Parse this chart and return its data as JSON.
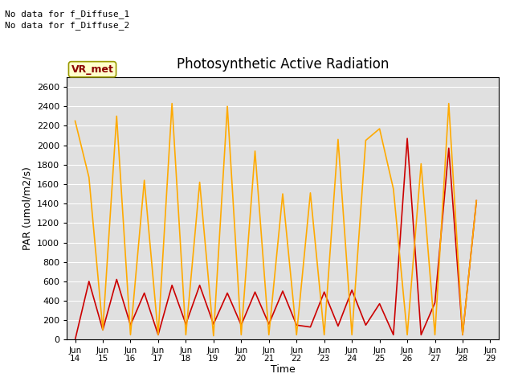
{
  "title": "Photosynthetic Active Radiation",
  "ylabel": "PAR (umol/m2/s)",
  "xlabel": "Time",
  "note_line1": "No data for f_Diffuse_1",
  "note_line2": "No data for f_Diffuse_2",
  "box_label": "VR_met",
  "ylim": [
    0,
    2700
  ],
  "yticks": [
    0,
    200,
    400,
    600,
    800,
    1000,
    1200,
    1400,
    1600,
    1800,
    2000,
    2200,
    2400,
    2600
  ],
  "x_labels": [
    "Jun\n14",
    "Jun\n15",
    "Jun\n16",
    "Jun\n17",
    "Jun\n18",
    "Jun\n19",
    "Jun\n20",
    "Jun\n21",
    "Jun\n22",
    "Jun\n23",
    "Jun\n24",
    "Jun\n25",
    "Jun\n26",
    "Jun\n27",
    "Jun\n28",
    "Jun\n29"
  ],
  "par_in_color": "#cc0000",
  "par_out_color": "#ffaa00",
  "background_color": "#e0e0e0",
  "par_in_x": [
    0,
    0.5,
    1,
    1.5,
    2,
    2.5,
    3,
    3.5,
    4,
    4.5,
    5,
    5.5,
    6,
    6.5,
    7,
    7.5,
    8,
    8.5,
    9,
    9.5,
    10,
    10.5,
    11,
    11.5,
    12,
    12.5,
    13,
    13.5,
    14,
    14.5
  ],
  "par_in_y": [
    0,
    600,
    100,
    620,
    150,
    480,
    50,
    560,
    160,
    560,
    160,
    480,
    150,
    490,
    160,
    500,
    150,
    130,
    490,
    140,
    510,
    150,
    370,
    50,
    2070,
    50,
    380,
    1970,
    50,
    1430
  ],
  "par_out_x": [
    0,
    0.5,
    1,
    1.5,
    2,
    2.5,
    3,
    3.5,
    4,
    4.5,
    5,
    5.5,
    6,
    6.5,
    7,
    7.5,
    8,
    8.5,
    9,
    9.5,
    10,
    10.5,
    11,
    11.5,
    12,
    12.5,
    13,
    13.5,
    14,
    14.5
  ],
  "par_out_y": [
    2250,
    1670,
    100,
    2300,
    50,
    1640,
    50,
    2430,
    50,
    1620,
    40,
    2400,
    50,
    1940,
    50,
    1500,
    50,
    1510,
    50,
    2060,
    50,
    2050,
    2170,
    1550,
    50,
    1810,
    50,
    2430,
    50,
    1430
  ]
}
